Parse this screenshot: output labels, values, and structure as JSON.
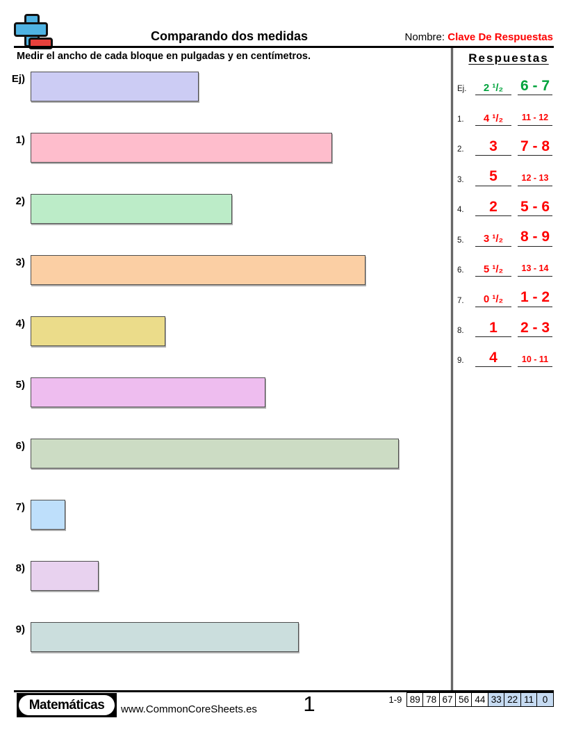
{
  "header": {
    "title": "Comparando dos medidas",
    "name_label": "Nombre:",
    "name_value": "Clave De Respuestas"
  },
  "instruction": "Medir el ancho de cada bloque en pulgadas y en centímetros.",
  "blocks": [
    {
      "label": "Ej)",
      "width_in": 2.5,
      "color": "#ccccf4"
    },
    {
      "label": "1)",
      "width_in": 4.5,
      "color": "#febdcc"
    },
    {
      "label": "2)",
      "width_in": 3,
      "color": "#bcecc8"
    },
    {
      "label": "3)",
      "width_in": 5,
      "color": "#fbcfa4"
    },
    {
      "label": "4)",
      "width_in": 2,
      "color": "#ebdc8a"
    },
    {
      "label": "5)",
      "width_in": 3.5,
      "color": "#eebdef"
    },
    {
      "label": "6)",
      "width_in": 5.5,
      "color": "#ccdcc4"
    },
    {
      "label": "7)",
      "width_in": 0.5,
      "color": "#bedffb"
    },
    {
      "label": "8)",
      "width_in": 1,
      "color": "#e8d2ef"
    },
    {
      "label": "9)",
      "width_in": 4,
      "color": "#cbdedd"
    }
  ],
  "answers": {
    "title": "Respuestas",
    "rows": [
      {
        "label": "Ej.",
        "inches": "2 ¹/₂",
        "cm": "6 - 7",
        "color": "#00a33c"
      },
      {
        "label": "1.",
        "inches": "4 ¹/₂",
        "cm": "11 - 12",
        "color": "#fe0000"
      },
      {
        "label": "2.",
        "inches": "3",
        "cm": "7 - 8",
        "color": "#fe0000"
      },
      {
        "label": "3.",
        "inches": "5",
        "cm": "12 - 13",
        "color": "#fe0000"
      },
      {
        "label": "4.",
        "inches": "2",
        "cm": "5 - 6",
        "color": "#fe0000"
      },
      {
        "label": "5.",
        "inches": "3 ¹/₂",
        "cm": "8 - 9",
        "color": "#fe0000"
      },
      {
        "label": "6.",
        "inches": "5 ¹/₂",
        "cm": "13 - 14",
        "color": "#fe0000"
      },
      {
        "label": "7.",
        "inches": "0 ¹/₂",
        "cm": "1 - 2",
        "color": "#fe0000"
      },
      {
        "label": "8.",
        "inches": "1",
        "cm": "2 - 3",
        "color": "#fe0000"
      },
      {
        "label": "9.",
        "inches": "4",
        "cm": "10 - 11",
        "color": "#fe0000"
      }
    ]
  },
  "footer": {
    "brand": "Matemáticas",
    "website": "www.CommonCoreSheets.es",
    "page_number": "1",
    "score_label": "1-9",
    "score_cells": [
      {
        "value": "89",
        "highlighted": false
      },
      {
        "value": "78",
        "highlighted": false
      },
      {
        "value": "67",
        "highlighted": false
      },
      {
        "value": "56",
        "highlighted": false
      },
      {
        "value": "44",
        "highlighted": false
      },
      {
        "value": "33",
        "highlighted": true
      },
      {
        "value": "22",
        "highlighted": true
      },
      {
        "value": "11",
        "highlighted": true
      },
      {
        "value": "0",
        "highlighted": true
      }
    ]
  },
  "colors": {
    "key_red": "#fe0000",
    "answer_green": "#00a33c",
    "logo_blue": "#4fb3e3",
    "logo_red": "#e8413c",
    "score_highlight": "#c6dbf2"
  }
}
